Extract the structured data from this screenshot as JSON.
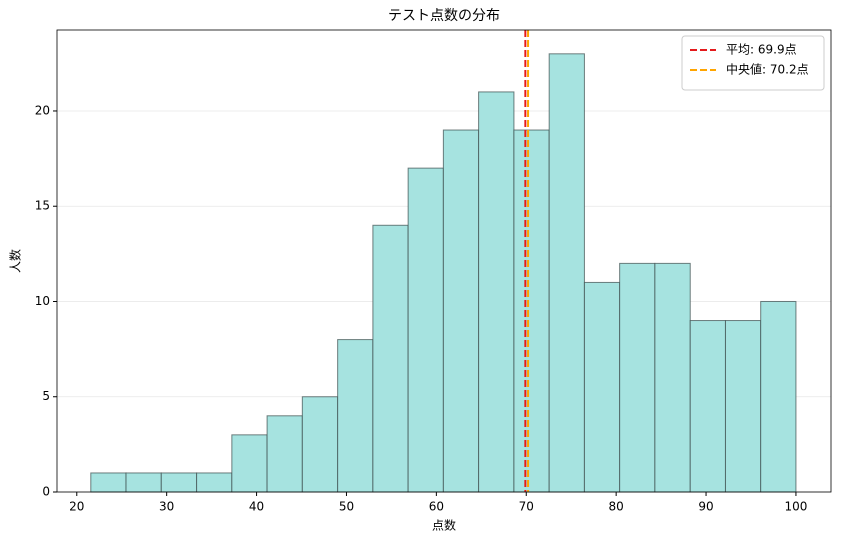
{
  "chart_data": {
    "type": "histogram",
    "title": "テスト点数の分布",
    "x_label": "点数",
    "y_label": "人数",
    "bins": [
      21.56,
      25.48,
      29.4,
      33.33,
      37.25,
      41.17,
      45.09,
      49.02,
      52.94,
      56.86,
      60.78,
      64.7,
      68.63,
      72.55,
      76.47,
      80.39,
      84.31,
      88.24,
      92.16,
      96.08,
      100
    ],
    "values": [
      1,
      1,
      1,
      1,
      3,
      4,
      5,
      8,
      14,
      17,
      19,
      21,
      19,
      23,
      11,
      12,
      12,
      9,
      9,
      10
    ],
    "color": "#a6e3e0",
    "edge_color": "#3a4a4a",
    "xlim": [
      17.8,
      103.9
    ],
    "xticks": [
      20,
      30,
      40,
      50,
      60,
      70,
      80,
      90,
      100
    ],
    "ylim": [
      0,
      24.25
    ],
    "yticks": [
      0,
      5,
      10,
      15,
      20
    ],
    "grid": true,
    "legend": "upper right",
    "lines": [
      {
        "name": "平均: 69.9点",
        "value": 69.9,
        "color": "#e41a1c"
      },
      {
        "name": "中央値: 70.2点",
        "value": 70.2,
        "color": "#ffa500"
      }
    ]
  }
}
